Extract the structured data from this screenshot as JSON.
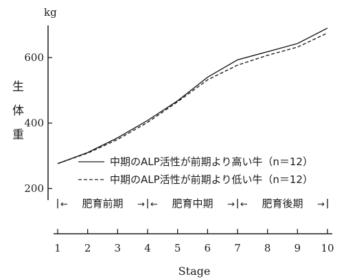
{
  "chart_data": {
    "type": "line",
    "title": "",
    "xlabel": "Stage",
    "ylabel": "生体重",
    "yunit": "kg",
    "xlim": [
      1,
      10
    ],
    "ylim": [
      160,
      700
    ],
    "x": [
      1,
      2,
      3,
      4,
      5,
      6,
      7,
      8,
      9,
      10
    ],
    "xticks": [
      "1",
      "2",
      "3",
      "4",
      "5",
      "6",
      "7",
      "8",
      "9",
      "10"
    ],
    "yticks": [
      "200",
      "400",
      "600"
    ],
    "ytick_values": [
      200,
      400,
      600
    ],
    "grid": false,
    "legend_position": "lower-right",
    "series": [
      {
        "name": "中期のALP活性が前期より高い牛（n＝12）",
        "style": "solid",
        "values": [
          276,
          310,
          355,
          408,
          468,
          540,
          593,
          618,
          643,
          690
        ]
      },
      {
        "name": "中期のALP活性が前期より低い牛（n＝12）",
        "style": "dashed",
        "values": [
          276,
          308,
          350,
          402,
          465,
          532,
          577,
          607,
          632,
          675
        ]
      }
    ],
    "phases": [
      {
        "label": "肥育前期",
        "start": 1,
        "end": 4
      },
      {
        "label": "肥育中期",
        "start": 4,
        "end": 7
      },
      {
        "label": "肥育後期",
        "start": 7,
        "end": 10
      }
    ],
    "colors": {
      "line": "#1a1a1a",
      "axis": "#1a1a1a"
    }
  }
}
